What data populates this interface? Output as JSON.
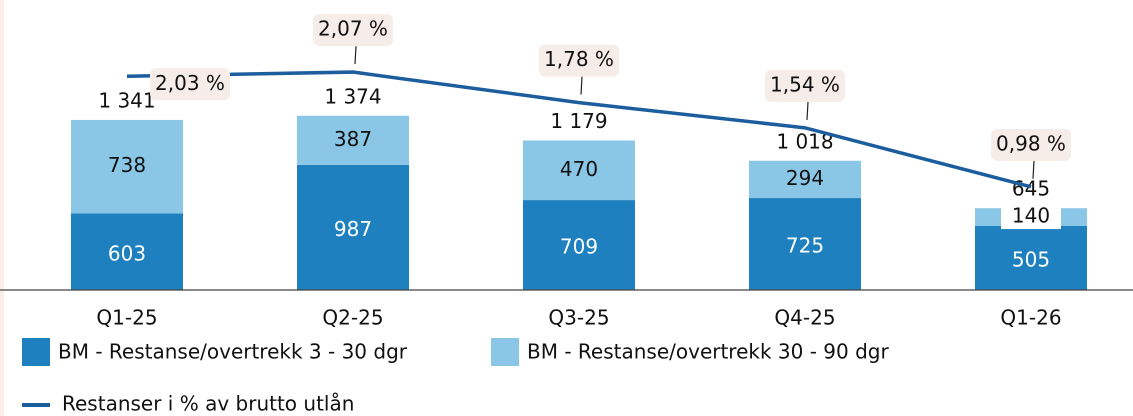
{
  "chart_data": {
    "type": "bar",
    "stacked": true,
    "categories": [
      "Q1-25",
      "Q2-25",
      "Q3-25",
      "Q4-25",
      "Q1-26"
    ],
    "series": [
      {
        "name": "BM - Restanse/overtrekk 3 - 30 dgr",
        "color": "#1f80c0",
        "values": [
          603,
          987,
          709,
          725,
          505
        ]
      },
      {
        "name": "BM - Restanse/overtrekk 30 - 90 dgr",
        "color": "#8ac7e6",
        "values": [
          738,
          387,
          470,
          294,
          140
        ]
      },
      {
        "name": "Restanser i % av brutto utlån",
        "color": "#1c5d9e",
        "type": "line",
        "axis": "y2",
        "values": [
          2.03,
          2.07,
          1.78,
          1.54,
          0.98
        ],
        "value_labels": [
          "2,03 %",
          "2,07 %",
          "1,78 %",
          "1,54 %",
          "0,98 %"
        ]
      }
    ],
    "total_labels": [
      "1 341",
      "1 374",
      "1 179",
      "1 018",
      "645"
    ],
    "ylim": [
      0,
      2200
    ],
    "y2lim": [
      0,
      2.65
    ],
    "legend": "bottom"
  }
}
